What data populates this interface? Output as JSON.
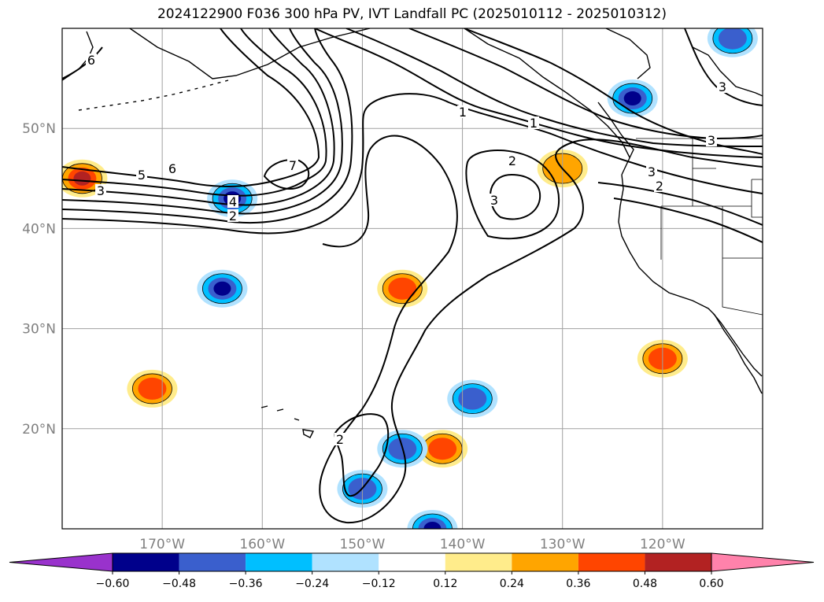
{
  "chart_data": {
    "type": "contour-map",
    "title": "2024122900 F036 300 hPa PV, IVT Landfall PC (2025010112 - 2025010312)",
    "x_ticks": [
      "170°W",
      "160°W",
      "150°W",
      "140°W",
      "130°W",
      "120°W"
    ],
    "y_ticks": [
      "20°N",
      "30°N",
      "40°N",
      "50°N"
    ],
    "lon_range": [
      -180,
      -110
    ],
    "lat_range": [
      10,
      60
    ],
    "grid": true,
    "contour_variable": "300 hPa PV",
    "contour_labels": [
      "6",
      "6",
      "5",
      "3",
      "7",
      "4",
      "2",
      "1",
      "1",
      "2",
      "3",
      "2",
      "3",
      "3",
      "3",
      "2"
    ],
    "fill_variable": "IVT Landfall PC",
    "colorbar": {
      "levels": [
        "−0.60",
        "−0.48",
        "−0.36",
        "−0.24",
        "−0.12",
        "0.12",
        "0.24",
        "0.36",
        "0.48",
        "0.60"
      ],
      "colors": [
        "#9932cc",
        "#00008b",
        "#3a5fcd",
        "#00bfff",
        "#b0e2ff",
        "#ffffff",
        "#ffec8b",
        "#ffa500",
        "#ff4500",
        "#b22222",
        "#ff82ab"
      ],
      "extend": "both"
    },
    "anomaly_patches": [
      {
        "lon": -178,
        "lat": 45,
        "sign": "positive",
        "max_level": 0.48
      },
      {
        "lon": -163,
        "lat": 43,
        "sign": "negative",
        "max_level": -0.48
      },
      {
        "lon": -164,
        "lat": 34,
        "sign": "negative",
        "max_level": -0.48
      },
      {
        "lon": -171,
        "lat": 24,
        "sign": "positive",
        "max_level": 0.36
      },
      {
        "lon": -146,
        "lat": 34,
        "sign": "positive",
        "max_level": 0.36
      },
      {
        "lon": -142,
        "lat": 18,
        "sign": "positive",
        "max_level": 0.36
      },
      {
        "lon": -146,
        "lat": 18,
        "sign": "negative",
        "max_level": -0.36
      },
      {
        "lon": -150,
        "lat": 14,
        "sign": "negative",
        "max_level": -0.36
      },
      {
        "lon": -143,
        "lat": 10,
        "sign": "negative",
        "max_level": -0.48
      },
      {
        "lon": -139,
        "lat": 23,
        "sign": "negative",
        "max_level": -0.36
      },
      {
        "lon": -123,
        "lat": 53,
        "sign": "negative",
        "max_level": -0.48
      },
      {
        "lon": -120,
        "lat": 27,
        "sign": "positive",
        "max_level": 0.36
      },
      {
        "lon": -113,
        "lat": 59,
        "sign": "negative",
        "max_level": -0.36
      },
      {
        "lon": -130,
        "lat": 46,
        "sign": "positive",
        "max_level": 0.24
      }
    ]
  }
}
